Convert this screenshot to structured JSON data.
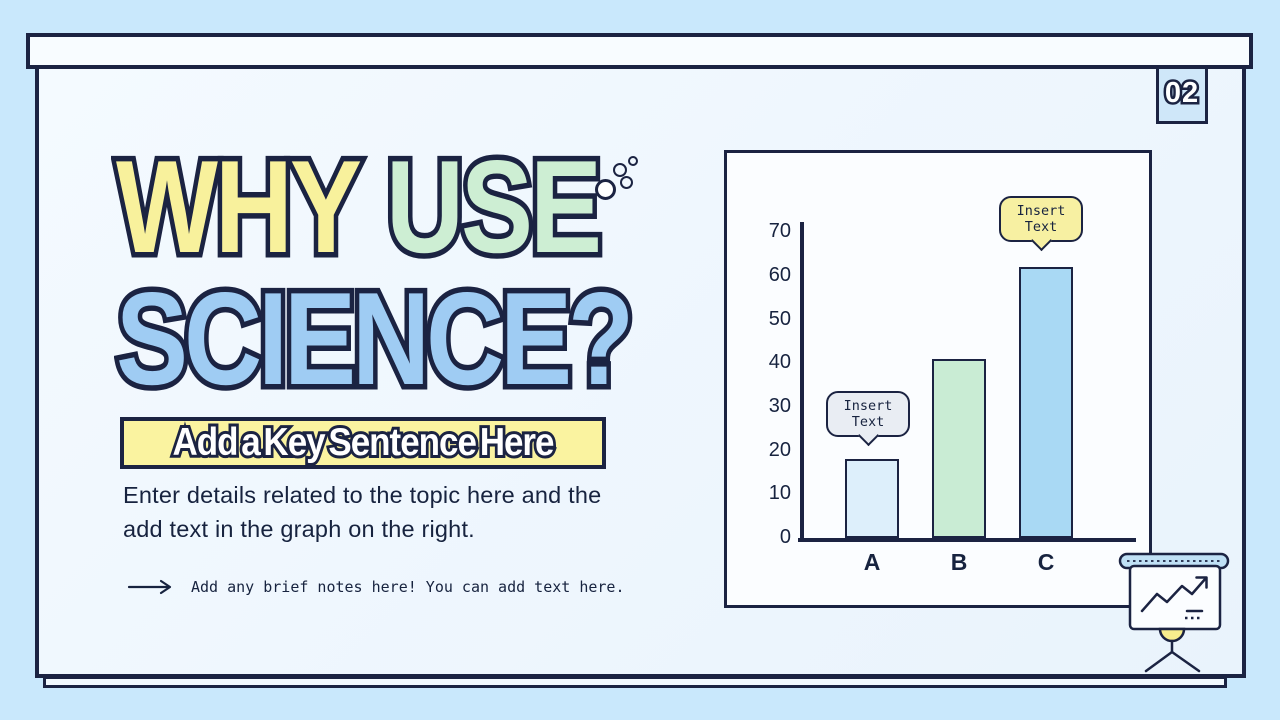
{
  "slide": {
    "page_number": "02",
    "title_word1": "WHY",
    "title_word2": "USE",
    "title_line2": "SCIENCE?",
    "key_sentence": "Add a Key Sentence Here",
    "details": "Enter details related to the topic here and the add text in the graph on the right.",
    "note": "Add any brief notes here! You can add text here."
  },
  "chart_data": {
    "type": "bar",
    "categories": [
      "A",
      "B",
      "C"
    ],
    "values": [
      18,
      41,
      62
    ],
    "bar_colors": [
      "#ddeffb",
      "#c9ecd4",
      "#a9d9f4"
    ],
    "yticks": [
      0,
      10,
      20,
      30,
      40,
      50,
      60,
      70
    ],
    "ylim": [
      0,
      70
    ],
    "grid": false,
    "title": "",
    "xlabel": "",
    "ylabel": "",
    "annotations": [
      {
        "target_category": "A",
        "text": "Insert Text",
        "bubble_color": "#e9edf3"
      },
      {
        "target_category": "C",
        "text": "Insert Text",
        "bubble_color": "#f7f0a2"
      }
    ]
  },
  "colors": {
    "navy_outline": "#1b2342",
    "outer_background": "#c9e8fc",
    "panel_background": "#ecf5fd",
    "chart_background": "#fbfdff",
    "title_yellow": "#f8f19c",
    "title_green": "#cdeed3",
    "title_blue": "#9fccf3",
    "banner_yellow": "#faf3a0",
    "badge_background": "#cfe7f9",
    "easel_bar_blue": "#bfe0f5",
    "easel_bulb_yellow": "#f8ee8d"
  },
  "icons": {
    "easel": "presentation-easel-with-trend-chart",
    "note_arrow": "right-arrow",
    "title_bubbles": "decorative-bubbles"
  }
}
